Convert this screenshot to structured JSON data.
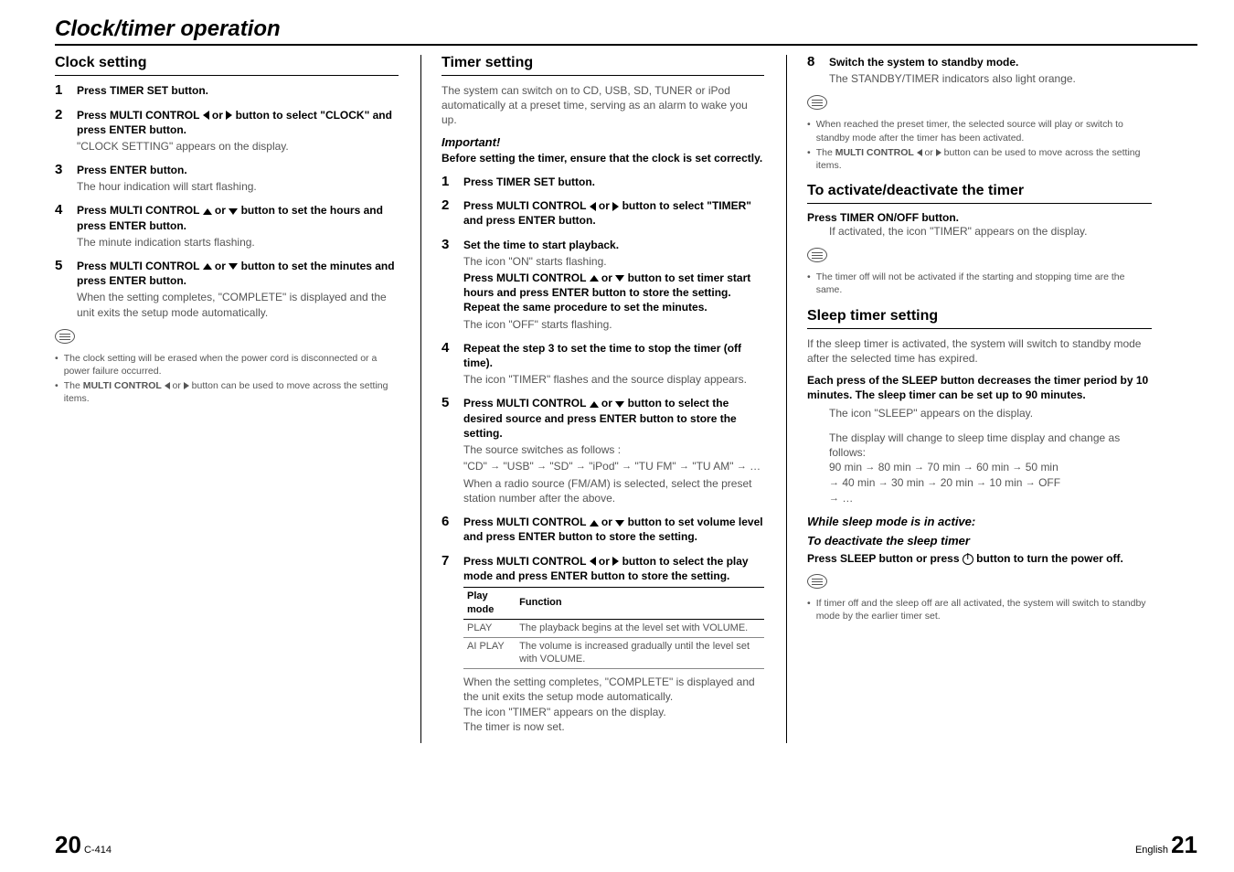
{
  "title": "Clock/timer operation",
  "col1": {
    "h1": "Clock setting",
    "s1": {
      "bold": "Press TIMER SET button."
    },
    "s2": {
      "bold_a": "Press MULTI CONTROL ",
      "bold_b": " or ",
      "bold_c": " button to select \"CLOCK\" and press ENTER button.",
      "light": "\"CLOCK SETTING\" appears on the display."
    },
    "s3": {
      "bold": "Press ENTER button.",
      "light": "The hour indication will start flashing."
    },
    "s4": {
      "bold_a": "Press MULTI CONTROL ",
      "bold_b": " or ",
      "bold_c": " button to set the hours and press ENTER button.",
      "light": "The minute indication starts flashing."
    },
    "s5": {
      "bold_a": "Press MULTI CONTROL ",
      "bold_b": " or ",
      "bold_c": " button to set the minutes and press ENTER button.",
      "light": "When the setting completes, \"COMPLETE\" is displayed and the unit exits the setup mode automatically."
    },
    "n1": "The clock setting will be erased when the power cord is disconnected or a power failure occurred.",
    "n2a": "The ",
    "n2b": "MULTI CONTROL ",
    "n2c": " or ",
    "n2d": " button can be used to move across the setting items."
  },
  "col2": {
    "h1": "Timer setting",
    "intro": "The system can switch on to CD, USB, SD, TUNER or iPod automatically at a preset time, serving as an alarm to wake you up.",
    "imp": "Important!",
    "impBody": "Before setting the timer, ensure that the clock is set correctly.",
    "s1": {
      "bold": "Press TIMER SET button."
    },
    "s2": {
      "bold_a": "Press MULTI CONTROL ",
      "bold_b": " or ",
      "bold_c": " button to select \"TIMER\" and press ENTER button."
    },
    "s3": {
      "bold": "Set the time to start playback.",
      "l1": "The icon \"ON\" starts flashing.",
      "bold2_a": "Press MULTI CONTROL ",
      "bold2_b": " or ",
      "bold2_c": " button to set timer start hours and press ENTER button to store the setting. Repeat the same procedure to set the minutes.",
      "l2": "The icon \"OFF\" starts flashing."
    },
    "s4": {
      "bold": "Repeat the step 3 to set the time to stop the timer (off time).",
      "light": "The icon \"TIMER\" flashes and the source display appears."
    },
    "s5": {
      "bold_a": "Press MULTI CONTROL ",
      "bold_b": " or ",
      "bold_c": " button to select the desired source and press ENTER button to store the setting.",
      "l1": "The source switches as follows :",
      "seqParts": [
        "\"CD\"",
        "\"USB\"",
        "\"SD\"",
        "\"iPod\"",
        "\"TU FM\"",
        "\"TU AM\"",
        "…"
      ],
      "l2": "When a radio source (FM/AM) is selected, select the preset station number after the above."
    },
    "s6": {
      "bold_a": "Press MULTI CONTROL ",
      "bold_b": " or ",
      "bold_c": " button to set volume level and press ENTER button to store the setting."
    },
    "s7": {
      "bold_a": "Press MULTI CONTROL ",
      "bold_b": " or ",
      "bold_c": " button to select the play mode and press ENTER button to store the setting."
    },
    "table": {
      "h1": "Play mode",
      "h2": "Function",
      "r1a": "PLAY",
      "r1b": "The playback begins at the level set with VOLUME.",
      "r2a": "AI PLAY",
      "r2b": "The volume is increased gradually until the level set with VOLUME."
    },
    "after": "When the setting completes, \"COMPLETE\" is displayed and the unit exits the setup mode automatically.\nThe icon \"TIMER\" appears on the display.\nThe timer is now set."
  },
  "col3": {
    "s8": {
      "bold": "Switch the system to standby mode.",
      "light": "The STANDBY/TIMER indicators also light orange."
    },
    "n1": "When reached the preset timer, the selected source will play or switch to standby mode after the timer has been activated.",
    "n2a": "The ",
    "n2b": "MULTI CONTROL ",
    "n2c": " or ",
    "n2d": " button can be used to move across the setting items.",
    "h2": "To activate/deactivate the timer",
    "h2body": "Press TIMER ON/OFF button.",
    "h2light": "If activated, the icon \"TIMER\" appears on the display.",
    "n3": "The timer off will not be activated if the starting and stopping time are the same.",
    "h3": "Sleep timer setting",
    "h3intro": "If the sleep timer is activated, the system will switch to standby mode after the selected time has expired.",
    "h3bold": "Each press of the SLEEP button decreases the timer period by 10 minutes. The sleep timer can be set up to 90 minutes.",
    "h3l1": "The icon \"SLEEP\" appears on the display.",
    "h3l2": "The display will change to sleep time display and change as follows:",
    "seq1": [
      "90 min",
      "80 min",
      "70 min",
      "60 min",
      "50 min"
    ],
    "seq2": [
      "40 min",
      "30 min",
      "20 min",
      "10 min",
      "OFF"
    ],
    "seq3": "…",
    "sub1": "While sleep mode is in active:",
    "sub2": "To deactivate the sleep timer",
    "sub2b_a": "Press SLEEP button or press ",
    "sub2b_b": " button to turn the power off.",
    "n4": "If timer off and the sleep off are all activated, the system will switch to standby mode by the earlier timer set."
  },
  "footer": {
    "leftBig": "20",
    "leftSmall": "C-414",
    "rightSmall": "English",
    "rightBig": "21"
  }
}
